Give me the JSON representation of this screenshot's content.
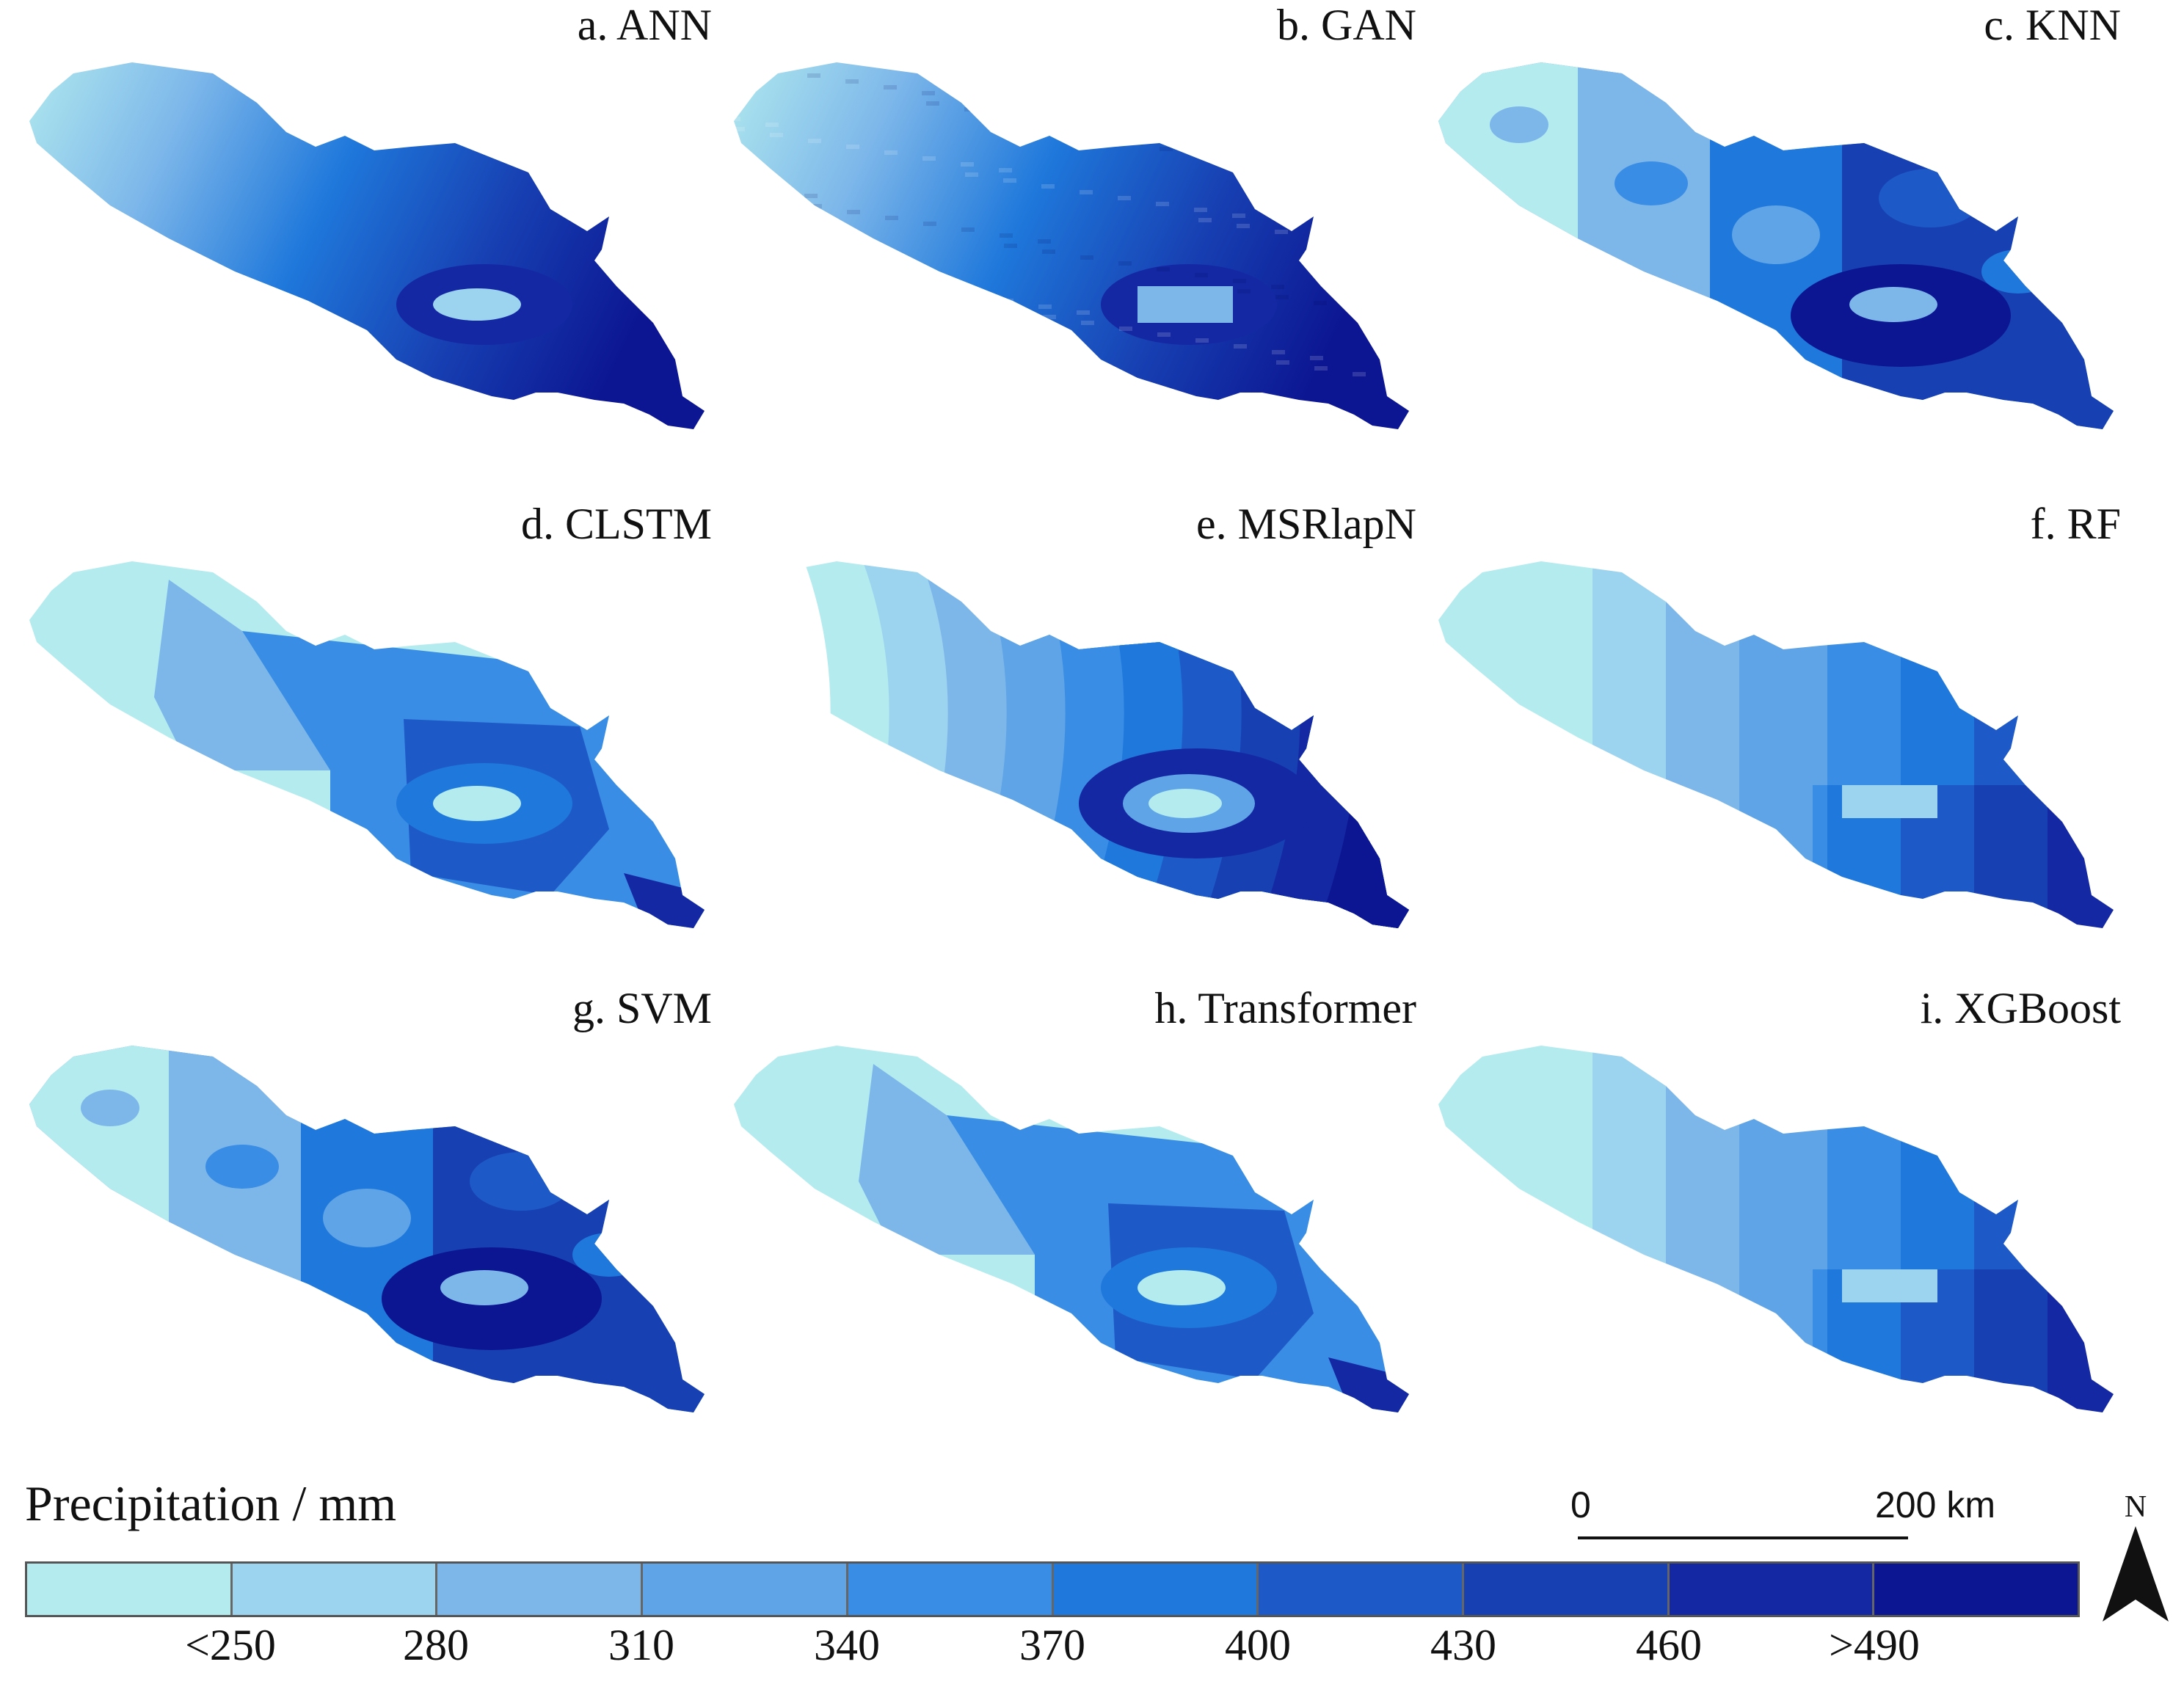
{
  "panels": [
    {
      "title": "a. ANN",
      "style": "smooth"
    },
    {
      "title": "b. GAN",
      "style": "smooth-noisy"
    },
    {
      "title": "c. KNN",
      "style": "patchy"
    },
    {
      "title": "d. CLSTM",
      "style": "zoned"
    },
    {
      "title": "e. MSRlapN",
      "style": "contoured"
    },
    {
      "title": "f. RF",
      "style": "pixelated"
    },
    {
      "title": "g. SVM",
      "style": "patchy"
    },
    {
      "title": "h. Transformer",
      "style": "zoned"
    },
    {
      "title": "i. XGBoost",
      "style": "pixelated"
    }
  ],
  "legend": {
    "title": "Precipitation / mm",
    "colors": [
      "#b3ebee",
      "#9cd3ee",
      "#7db7ea",
      "#5ea4e6",
      "#3a8de4",
      "#1f78db",
      "#1e59c8",
      "#1740b3",
      "#1428a3",
      "#0c1592"
    ],
    "ticks": [
      "<250",
      "280",
      "310",
      "340",
      "370",
      "400",
      "430",
      "460",
      ">490"
    ]
  },
  "scale_bar": {
    "start_label": "0",
    "end_label": "200 km"
  },
  "north_arrow": {
    "label": "N",
    "icon": "north-arrow-icon"
  }
}
